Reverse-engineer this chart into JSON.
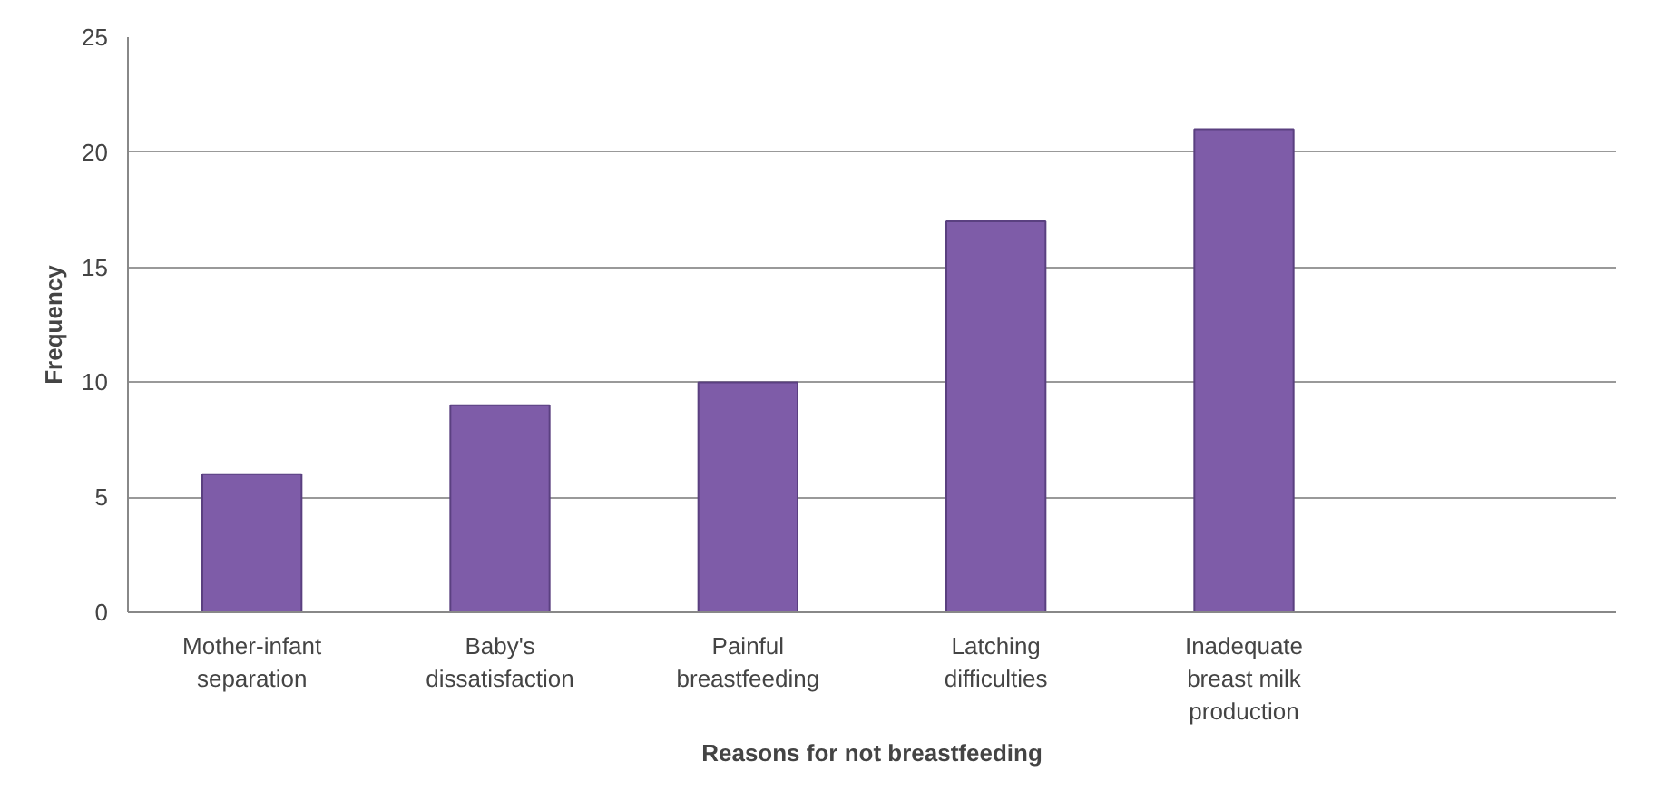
{
  "chart_data": {
    "type": "bar",
    "xlabel": "Reasons for not breastfeeding",
    "ylabel": "Frequency",
    "categories": [
      "Mother-infant separation",
      "Baby's dissatisfaction",
      "Painful breastfeeding",
      "Latching difficulties",
      "Inadequate breast milk production",
      null
    ],
    "values": [
      6,
      9,
      10,
      17,
      21,
      null
    ],
    "color": "#7e5ca8",
    "ylim": [
      0,
      25
    ],
    "yticks": [
      0,
      5,
      10,
      15,
      20,
      25
    ],
    "grid": "y"
  }
}
